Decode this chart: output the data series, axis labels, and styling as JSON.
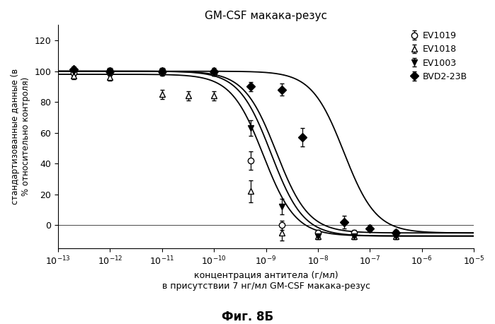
{
  "title": "GM-CSF макака-резус",
  "xlabel_line1": "концентрация антитела (г/мл)",
  "xlabel_line2": "в присутствии 7 нг/мл GM-CSF макака-резус",
  "ylabel": "стандартизованные данные (в\n% относительно контроля)",
  "caption": "Фиг. 8Б",
  "xlim_log": [
    -13,
    -5
  ],
  "ylim": [
    -15,
    130
  ],
  "yticks": [
    0,
    20,
    40,
    60,
    80,
    100,
    120
  ],
  "series": [
    {
      "name": "EV1019",
      "color": "#000000",
      "marker": "o",
      "fillstyle": "none",
      "ec50_log": -8.8,
      "hill": 1.4,
      "top": 100,
      "bottom": -5,
      "x_data_log": [
        -12.7,
        -12.0,
        -11.0,
        -10.0,
        -9.3,
        -8.7,
        -8.0,
        -7.3,
        -6.5
      ],
      "y_data": [
        99,
        99,
        99,
        99,
        42,
        0,
        -5,
        -5,
        -5
      ],
      "yerr": [
        2,
        2,
        2,
        2,
        6,
        3,
        2,
        2,
        2
      ]
    },
    {
      "name": "EV1018",
      "color": "#000000",
      "marker": "^",
      "fillstyle": "none",
      "ec50_log": -9.05,
      "hill": 1.4,
      "top": 98,
      "bottom": -7,
      "x_data_log": [
        -12.7,
        -12.0,
        -11.0,
        -10.5,
        -10.0,
        -9.3,
        -8.7,
        -8.0,
        -7.3,
        -6.5
      ],
      "y_data": [
        97,
        96,
        85,
        84,
        84,
        22,
        -5,
        -7,
        -7,
        -7
      ],
      "yerr": [
        2,
        2,
        3,
        3,
        3,
        7,
        5,
        2,
        2,
        2
      ]
    },
    {
      "name": "EV1003",
      "color": "#000000",
      "marker": "v",
      "fillstyle": "full",
      "ec50_log": -8.9,
      "hill": 1.4,
      "top": 100,
      "bottom": -7,
      "x_data_log": [
        -12.7,
        -12.0,
        -11.0,
        -10.0,
        -9.3,
        -8.7,
        -8.0,
        -7.3,
        -6.5
      ],
      "y_data": [
        100,
        100,
        100,
        99,
        63,
        12,
        -7,
        -7,
        -7
      ],
      "yerr": [
        2,
        2,
        2,
        2,
        5,
        5,
        2,
        2,
        2
      ]
    },
    {
      "name": "BVD2-23B",
      "color": "#000000",
      "marker": "D",
      "fillstyle": "full",
      "ec50_log": -7.5,
      "hill": 1.4,
      "top": 100,
      "bottom": -5,
      "x_data_log": [
        -12.7,
        -12.0,
        -11.0,
        -10.0,
        -9.3,
        -8.7,
        -8.3,
        -7.5,
        -7.0,
        -6.5
      ],
      "y_data": [
        101,
        100,
        100,
        100,
        90,
        88,
        57,
        2,
        -2,
        -5
      ],
      "yerr": [
        2,
        2,
        2,
        2,
        3,
        4,
        6,
        4,
        2,
        2
      ]
    }
  ],
  "background_color": "#ffffff"
}
